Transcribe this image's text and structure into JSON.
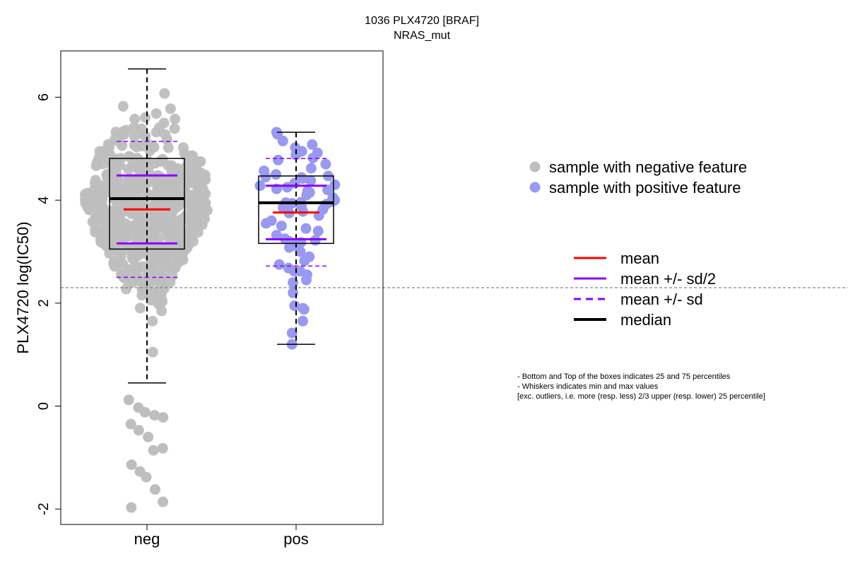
{
  "chart_data": {
    "type": "box-swarm",
    "title": "1036 PLX4720 [BRAF]",
    "subtitle": "NRAS_mut",
    "ylabel": "PLX4720 log(IC50)",
    "xlabel": "",
    "categories": [
      "neg",
      "pos"
    ],
    "y_ticks": [
      -2,
      0,
      2,
      4,
      6
    ],
    "ylim": [
      -2.3,
      6.9
    ],
    "grid": false,
    "threshold_line": 2.3,
    "groups": [
      {
        "name": "neg",
        "point_color": "#bebebe",
        "n_points": 600,
        "box": {
          "q1": 3.05,
          "median": 4.03,
          "q3": 4.81,
          "whisker_low": 0.45,
          "whisker_high": 6.55
        },
        "mean": 3.82,
        "mean_sd_half": [
          3.16,
          4.48
        ],
        "mean_sd": [
          2.5,
          5.14
        ],
        "outliers_low": [
          0.12,
          -0.03,
          -0.12,
          -0.18,
          -0.22,
          -0.35,
          -0.47,
          -0.6,
          -0.86,
          -0.82,
          -1.14,
          -1.27,
          -1.38,
          -1.62,
          -1.86,
          -1.97
        ]
      },
      {
        "name": "pos",
        "point_color": "#9999f0",
        "n_points": 73,
        "box": {
          "q1": 3.16,
          "median": 3.95,
          "q3": 4.47,
          "whisker_low": 1.2,
          "whisker_high": 5.32
        },
        "mean": 3.76,
        "mean_sd_half": [
          3.24,
          4.28
        ],
        "mean_sd": [
          2.72,
          4.81
        ],
        "points": [
          5.32,
          5.28,
          5.15,
          5.08,
          5.02,
          4.98,
          4.95,
          4.92,
          4.88,
          4.82,
          4.78,
          4.7,
          4.62,
          4.57,
          4.5,
          4.47,
          4.45,
          4.44,
          4.42,
          4.38,
          4.33,
          4.3,
          4.28,
          4.25,
          4.22,
          4.2,
          4.18,
          4.15,
          4.1,
          4.05,
          4.0,
          3.97,
          3.96,
          3.95,
          3.94,
          3.93,
          3.92,
          3.9,
          3.88,
          3.85,
          3.82,
          3.78,
          3.75,
          3.7,
          3.6,
          3.5,
          3.45,
          3.4,
          3.32,
          3.25,
          3.22,
          3.2,
          3.18,
          3.12,
          3.08,
          3.0,
          2.9,
          2.82,
          2.75,
          2.68,
          2.62,
          2.55,
          2.45,
          2.4,
          2.2,
          1.9,
          1.88,
          1.65,
          1.42,
          1.2,
          1.95,
          2.62,
          3.55
        ]
      }
    ],
    "legend_points": [
      {
        "label": "sample with negative feature",
        "color": "#bebebe"
      },
      {
        "label": "sample with positive feature",
        "color": "#9999f0"
      }
    ],
    "legend_lines": [
      {
        "label": "mean",
        "color": "#ff0000",
        "style": "solid"
      },
      {
        "label": "mean +/- sd/2",
        "color": "#8b00ff",
        "style": "solid"
      },
      {
        "label": "mean +/- sd",
        "color": "#8b00ff",
        "style": "dashed"
      },
      {
        "label": "median",
        "color": "#000000",
        "style": "solid-thick"
      }
    ],
    "notes": [
      "- Bottom and Top of the boxes indicates 25 and 75 percentiles",
      "- Whiskers indicates min and max values",
      "[exc. outliers, i.e. more (resp. less) 2/3 upper (resp. lower) 25 percentile]"
    ]
  }
}
